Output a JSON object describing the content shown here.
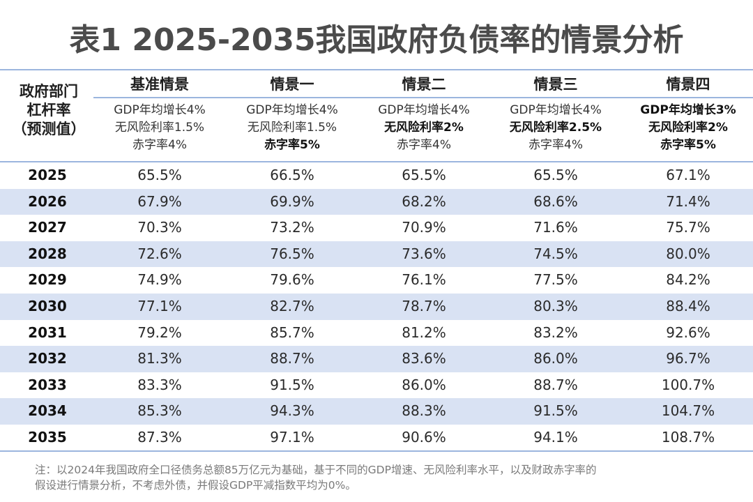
{
  "title": "表1  2025-2035我国政府负债率的情景分析",
  "row_header": [
    "政府部门",
    "杠杆率",
    "（预测值）"
  ],
  "scenarios": [
    {
      "name": "基准情景",
      "assumptions": [
        {
          "text": "GDP年均增长4%",
          "bold": false
        },
        {
          "text": "无风险利率1.5%",
          "bold": false
        },
        {
          "text": "赤字率4%",
          "bold": false
        }
      ]
    },
    {
      "name": "情景一",
      "assumptions": [
        {
          "text": "GDP年均增长4%",
          "bold": false
        },
        {
          "text": "无风险利率1.5%",
          "bold": false
        },
        {
          "text": "赤字率5%",
          "bold": true
        }
      ]
    },
    {
      "name": "情景二",
      "assumptions": [
        {
          "text": "GDP年均增长4%",
          "bold": false
        },
        {
          "text": "无风险利率2%",
          "bold": true
        },
        {
          "text": "赤字率4%",
          "bold": false
        }
      ]
    },
    {
      "name": "情景三",
      "assumptions": [
        {
          "text": "GDP年均增长4%",
          "bold": false
        },
        {
          "text": "无风险利率2.5%",
          "bold": true
        },
        {
          "text": "赤字率4%",
          "bold": false
        }
      ]
    },
    {
      "name": "情景四",
      "assumptions": [
        {
          "text": "GDP年均增长3%",
          "bold": true
        },
        {
          "text": "无风险利率2%",
          "bold": true
        },
        {
          "text": "赤字率5%",
          "bold": true
        }
      ]
    }
  ],
  "rows": [
    {
      "year": "2025",
      "values": [
        "65.5%",
        "66.5%",
        "65.5%",
        "65.5%",
        "67.1%"
      ]
    },
    {
      "year": "2026",
      "values": [
        "67.9%",
        "69.9%",
        "68.2%",
        "68.6%",
        "71.4%"
      ]
    },
    {
      "year": "2027",
      "values": [
        "70.3%",
        "73.2%",
        "70.9%",
        "71.6%",
        "75.7%"
      ]
    },
    {
      "year": "2028",
      "values": [
        "72.6%",
        "76.5%",
        "73.6%",
        "74.5%",
        "80.0%"
      ]
    },
    {
      "year": "2029",
      "values": [
        "74.9%",
        "79.6%",
        "76.1%",
        "77.5%",
        "84.2%"
      ]
    },
    {
      "year": "2030",
      "values": [
        "77.1%",
        "82.7%",
        "78.7%",
        "80.3%",
        "88.4%"
      ]
    },
    {
      "year": "2031",
      "values": [
        "79.2%",
        "85.7%",
        "81.2%",
        "83.2%",
        "92.6%"
      ]
    },
    {
      "year": "2032",
      "values": [
        "81.3%",
        "88.7%",
        "83.6%",
        "86.0%",
        "96.7%"
      ]
    },
    {
      "year": "2033",
      "values": [
        "83.3%",
        "91.5%",
        "86.0%",
        "88.7%",
        "100.7%"
      ]
    },
    {
      "year": "2034",
      "values": [
        "85.3%",
        "94.3%",
        "88.3%",
        "91.5%",
        "104.7%"
      ]
    },
    {
      "year": "2035",
      "values": [
        "87.3%",
        "97.1%",
        "90.6%",
        "94.1%",
        "108.7%"
      ]
    }
  ],
  "note": [
    "注：以2024年我国政府全口径债务总额85万亿元为基础，基于不同的GDP增速、无风险利率水平，以及财政赤字率的",
    "假设进行情景分析，不考虑外债，并假设GDP平减指数平均为0%。"
  ],
  "colors": {
    "stripe": "#d9e2f3",
    "rule": "#9bb5de",
    "title": "#4b4b4b",
    "note": "#7a7a7a"
  }
}
